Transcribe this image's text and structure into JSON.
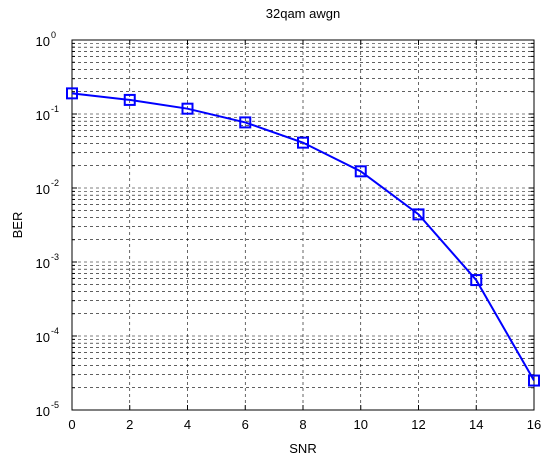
{
  "chart_data": {
    "type": "line",
    "title": "32qam awgn",
    "xlabel": "SNR",
    "ylabel": "BER",
    "xlim": [
      0,
      16
    ],
    "ylim": [
      1e-05,
      1
    ],
    "yscale": "log",
    "grid": true,
    "x_ticks": [
      "0",
      "2",
      "4",
      "6",
      "8",
      "10",
      "12",
      "14",
      "16"
    ],
    "y_ticks": [
      {
        "base": "10",
        "exp": "0",
        "value": 1
      },
      {
        "base": "10",
        "exp": "-1",
        "value": 0.1
      },
      {
        "base": "10",
        "exp": "-2",
        "value": 0.01
      },
      {
        "base": "10",
        "exp": "-3",
        "value": 0.001
      },
      {
        "base": "10",
        "exp": "-4",
        "value": 0.0001
      },
      {
        "base": "10",
        "exp": "-5",
        "value": 1e-05
      }
    ],
    "series": [
      {
        "color": "#0000ff",
        "marker": "square",
        "x": [
          0,
          2,
          4,
          6,
          8,
          10,
          12,
          14,
          16
        ],
        "y": [
          0.19,
          0.155,
          0.118,
          0.077,
          0.041,
          0.0168,
          0.0044,
          0.00057,
          2.5e-05
        ]
      }
    ]
  }
}
